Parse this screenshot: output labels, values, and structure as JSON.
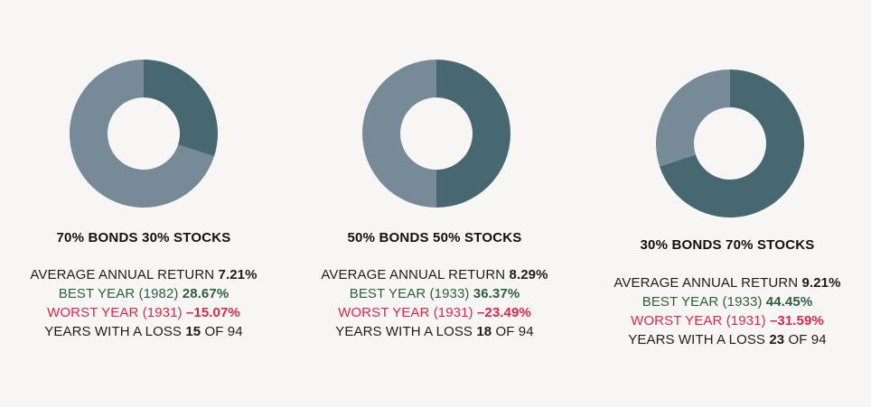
{
  "colors": {
    "bonds": "#778a98",
    "stocks": "#476870",
    "background": "#f8f6f4",
    "best": "#2f5d44",
    "worst": "#d9274e"
  },
  "chart_data": [
    {
      "type": "pie",
      "title": "70% BONDS 30% STOCKS",
      "slices": [
        {
          "label": "BONDS",
          "value": 70
        },
        {
          "label": "STOCKS",
          "value": 30
        }
      ],
      "stats": {
        "avg_label": "AVERAGE ANNUAL RETURN",
        "avg_value": "7.21%",
        "best_label": "BEST YEAR (1982)",
        "best_value": "28.67%",
        "worst_label": "WORST YEAR (1931)",
        "worst_value": "–15.07%",
        "loss_label": "YEARS WITH A LOSS",
        "loss_value": "15",
        "loss_of": "OF 94"
      }
    },
    {
      "type": "pie",
      "title": "50% BONDS 50% STOCKS",
      "slices": [
        {
          "label": "BONDS",
          "value": 50
        },
        {
          "label": "STOCKS",
          "value": 50
        }
      ],
      "stats": {
        "avg_label": "AVERAGE ANNUAL RETURN",
        "avg_value": "8.29%",
        "best_label": "BEST YEAR (1933)",
        "best_value": "36.37%",
        "worst_label": "WORST YEAR (1931)",
        "worst_value": "–23.49%",
        "loss_label": "YEARS WITH A LOSS",
        "loss_value": "18",
        "loss_of": "OF 94"
      }
    },
    {
      "type": "pie",
      "title": "30% BONDS 70% STOCKS",
      "slices": [
        {
          "label": "BONDS",
          "value": 30
        },
        {
          "label": "STOCKS",
          "value": 70
        }
      ],
      "stats": {
        "avg_label": "AVERAGE ANNUAL RETURN",
        "avg_value": "9.21%",
        "best_label": "BEST YEAR (1933)",
        "best_value": "44.45%",
        "worst_label": "WORST YEAR (1931)",
        "worst_value": "–31.59%",
        "loss_label": "YEARS WITH A LOSS",
        "loss_value": "23",
        "loss_of": "OF 94"
      }
    }
  ]
}
